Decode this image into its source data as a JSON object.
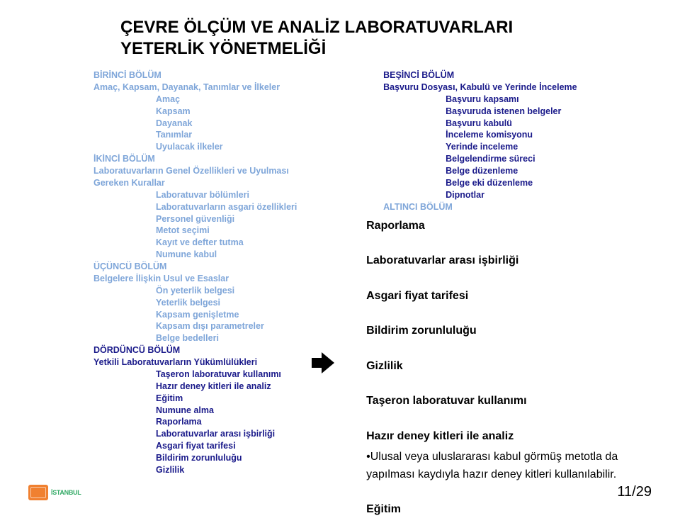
{
  "title": {
    "line1": "ÇEVRE ÖLÇÜM VE ANALİZ LABORATUVARLARI",
    "line2": "YETERLİK YÖNETMELİĞİ"
  },
  "left": {
    "s1": {
      "head": "BİRİNCİ BÖLÜM",
      "sub": "Amaç, Kapsam, Dayanak, Tanımlar ve İlkeler",
      "items": [
        "Amaç",
        "Kapsam",
        "Dayanak",
        "Tanımlar",
        "Uyulacak ilkeler"
      ]
    },
    "s2": {
      "head": "İKİNCİ BÖLÜM",
      "sub1": "Laboratuvarların Genel Özellikleri ve Uyulması",
      "sub2": "Gereken Kurallar",
      "items": [
        "Laboratuvar bölümleri",
        "Laboratuvarların asgari özellikleri",
        "Personel güvenliği",
        "Metot seçimi",
        "Kayıt ve defter tutma",
        "Numune kabul"
      ]
    },
    "s3": {
      "head": "ÜÇÜNCÜ BÖLÜM",
      "sub": "Belgelere İlişkin Usul ve Esaslar",
      "items": [
        "Ön yeterlik belgesi",
        "Yeterlik belgesi",
        "Kapsam genişletme",
        "Kapsam dışı parametreler",
        "Belge bedelleri"
      ]
    },
    "s4": {
      "head": "DÖRDÜNCÜ BÖLÜM",
      "sub": "Yetkili Laboratuvarların Yükümlülükleri",
      "items": [
        "Taşeron laboratuvar kullanımı",
        "Hazır deney kitleri ile analiz",
        "Eğitim",
        "Numune alma",
        "Raporlama",
        "Laboratuvarlar arası işbirliği",
        "Asgari fiyat tarifesi",
        "Bildirim zorunluluğu",
        "Gizlilik"
      ]
    }
  },
  "right": {
    "s5": {
      "head": "BEŞİNCİ BÖLÜM",
      "sub": "Başvuru Dosyası, Kabulü ve Yerinde İnceleme",
      "items": [
        "Başvuru kapsamı",
        "Başvuruda istenen belgeler",
        "Başvuru kabulü",
        "İnceleme komisyonu",
        "Yerinde inceleme",
        "Belgelendirme süreci",
        "Belge düzenleme",
        "Belge eki düzenleme",
        "Dipnotlar"
      ]
    },
    "s6": {
      "head": "ALTINCI BÖLÜM"
    },
    "box": {
      "l1": "Raporlama",
      "l2": "Laboratuvarlar arası işbirliği",
      "l3": "Asgari fiyat tarifesi",
      "l4": "Bildirim zorunluluğu",
      "l5": "Gizlilik",
      "l6": "Taşeron laboratuvar kullanımı",
      "l7": "Hazır deney kitleri ile analiz",
      "bullet": "•Ulusal veya uluslararası kabul görmüş metotla da yapılması kaydıyla hazır deney kitleri kullanılabilir.",
      "l8": "Eğitim"
    }
  },
  "footer": {
    "logo_text": "İSTANBUL",
    "page": "11/29"
  },
  "colors": {
    "section_dark": "#1a1a8a",
    "section_light": "#7fa6d9",
    "title": "#000000",
    "box_text": "#000000",
    "logo_badge": "#f08030",
    "logo_text": "#33aa66"
  }
}
